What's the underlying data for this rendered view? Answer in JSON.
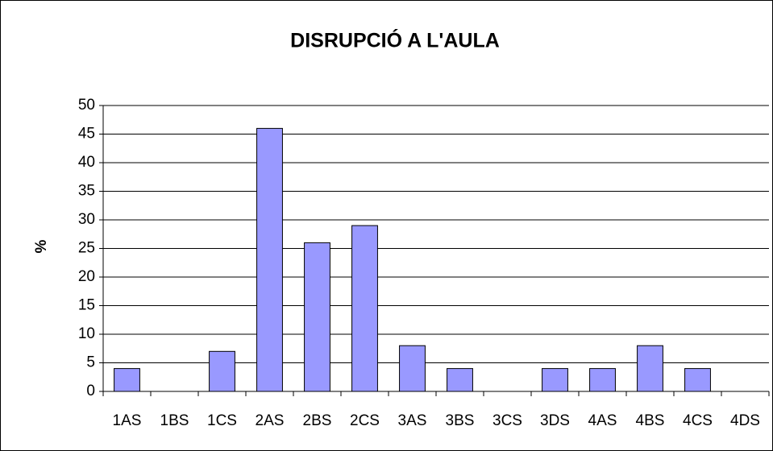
{
  "chart_data": {
    "type": "bar",
    "title": "DISRUPCIÓ A L'AULA",
    "y_label": "%",
    "categories": [
      "1AS",
      "1BS",
      "1CS",
      "2AS",
      "2BS",
      "2CS",
      "3AS",
      "3BS",
      "3CS",
      "3DS",
      "4AS",
      "4BS",
      "4CS",
      "4DS"
    ],
    "values": [
      4,
      0,
      7,
      46,
      26,
      29,
      8,
      4,
      0,
      4,
      4,
      8,
      4,
      0
    ],
    "color": "#9999ff",
    "ylim": [
      0,
      50
    ],
    "yticks": [
      0,
      5,
      10,
      15,
      20,
      25,
      30,
      35,
      40,
      45,
      50
    ],
    "grid": true
  }
}
